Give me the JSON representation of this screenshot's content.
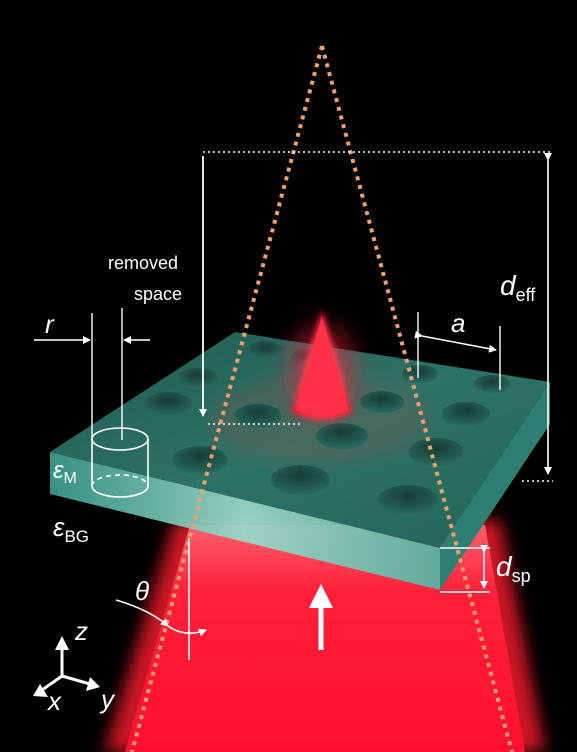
{
  "labels": {
    "removed_line1": "removed",
    "removed_line2": "space",
    "r": "r",
    "a": "a",
    "d_eff_main": "d",
    "d_eff_sub": "eff",
    "d_sp_main": "d",
    "d_sp_sub": "sp",
    "eps_m_main": "ε",
    "eps_m_sub": "M",
    "eps_bg_main": "ε",
    "eps_bg_sub": "BG",
    "theta": "θ",
    "axis_z": "z",
    "axis_x": "x",
    "axis_y": "y"
  },
  "colors": {
    "background": "#000000",
    "slab_top": "#2a6b60",
    "slab_side": "#3f9c8d",
    "beam": "#ff1a2e",
    "cone_dots": "#f0a070",
    "annotation": "#ffffff"
  }
}
